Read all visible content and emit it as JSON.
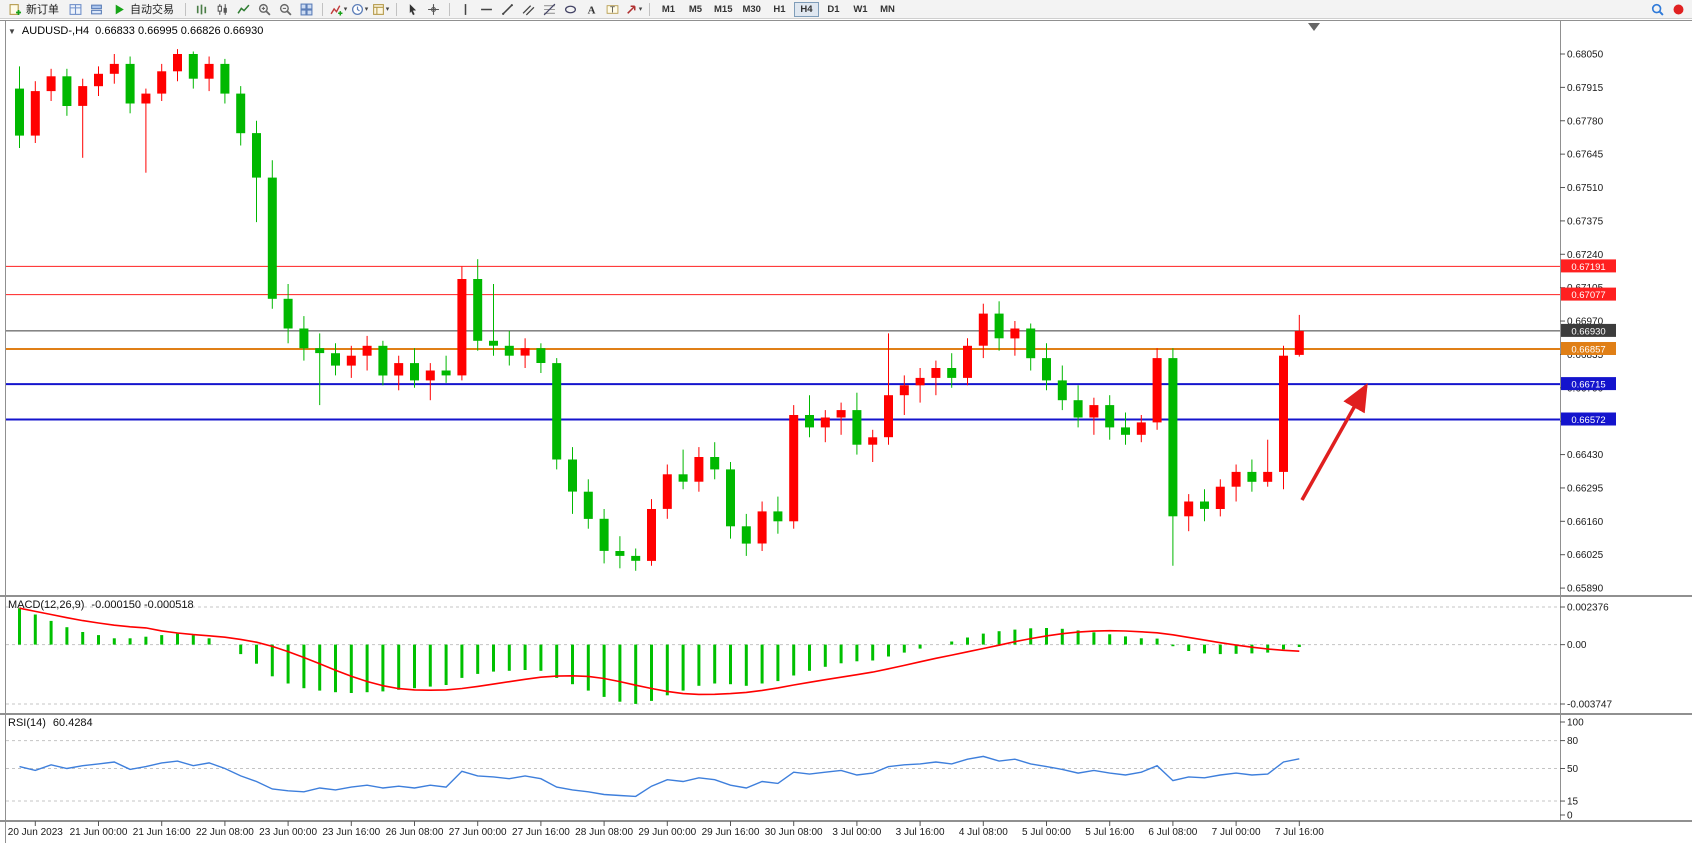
{
  "toolbar": {
    "active_timeframe": "H4",
    "items": [
      {
        "t": "btn",
        "name": "new-order-button",
        "icon": "new-order",
        "label": "新订单"
      },
      {
        "t": "icon",
        "name": "chart-window-icon",
        "icon": "grid"
      },
      {
        "t": "icon",
        "name": "data-window-icon",
        "icon": "layers"
      },
      {
        "t": "btn",
        "name": "autotrading-button",
        "icon": "play",
        "label": "自动交易"
      },
      {
        "t": "sep"
      },
      {
        "t": "icon",
        "name": "bar-chart-icon",
        "icon": "bars"
      },
      {
        "t": "icon",
        "name": "candlestick-chart-icon",
        "icon": "candles"
      },
      {
        "t": "icon",
        "name": "line-chart-icon",
        "icon": "linechart"
      },
      {
        "t": "icon",
        "name": "zoom-in-icon",
        "icon": "zoom-in"
      },
      {
        "t": "icon",
        "name": "zoom-out-icon",
        "icon": "zoom-out"
      },
      {
        "t": "icon",
        "name": "tile-windows-icon",
        "icon": "tiles"
      },
      {
        "t": "sep"
      },
      {
        "t": "icon",
        "name": "indicators-icon",
        "icon": "indicator",
        "caret": true
      },
      {
        "t": "icon",
        "name": "periods-icon",
        "icon": "clock",
        "caret": true
      },
      {
        "t": "icon",
        "name": "templates-icon",
        "icon": "template",
        "caret": true
      },
      {
        "t": "sep"
      },
      {
        "t": "icon",
        "name": "cursor-icon",
        "icon": "cursor"
      },
      {
        "t": "icon",
        "name": "crosshair-icon",
        "icon": "crosshair"
      },
      {
        "t": "sep"
      },
      {
        "t": "icon",
        "name": "vertical-line-icon",
        "icon": "vline"
      },
      {
        "t": "icon",
        "name": "horizontal-line-icon",
        "icon": "hline"
      },
      {
        "t": "icon",
        "name": "trendline-icon",
        "icon": "trend"
      },
      {
        "t": "icon",
        "name": "equidistant-channel-icon",
        "icon": "channel"
      },
      {
        "t": "icon",
        "name": "fibonacci-icon",
        "icon": "fibo"
      },
      {
        "t": "icon",
        "name": "shapes-icon",
        "icon": "ellipse"
      },
      {
        "t": "icon",
        "name": "text-icon",
        "icon": "textA"
      },
      {
        "t": "icon",
        "name": "text-label-icon",
        "icon": "labelT"
      },
      {
        "t": "icon",
        "name": "arrows-icon",
        "icon": "arrow",
        "caret": true
      },
      {
        "t": "sep"
      },
      {
        "t": "tf",
        "name": "timeframe-m1",
        "label": "M1"
      },
      {
        "t": "tf",
        "name": "timeframe-m5",
        "label": "M5"
      },
      {
        "t": "tf",
        "name": "timeframe-m15",
        "label": "M15"
      },
      {
        "t": "tf",
        "name": "timeframe-m30",
        "label": "M30"
      },
      {
        "t": "tf",
        "name": "timeframe-h1",
        "label": "H1"
      },
      {
        "t": "tf",
        "name": "timeframe-h4",
        "label": "H4"
      },
      {
        "t": "tf",
        "name": "timeframe-d1",
        "label": "D1"
      },
      {
        "t": "tf",
        "name": "timeframe-w1",
        "label": "W1"
      },
      {
        "t": "tf",
        "name": "timeframe-mn",
        "label": "MN"
      },
      {
        "t": "flex"
      },
      {
        "t": "icon",
        "name": "search-icon",
        "icon": "search"
      },
      {
        "t": "icon",
        "name": "record-icon",
        "icon": "record"
      }
    ]
  },
  "chart_title": {
    "collapse_glyph": "▼"
  },
  "chart_data": [
    {
      "type": "candlestick",
      "title": "AUDUSD-,H4",
      "ohlc_display": "0.66833 0.66995 0.66826 0.66930",
      "up_color": "#ff0000",
      "down_color": "#00b800",
      "y_ticks": [
        "0.68050",
        "0.67915",
        "0.67780",
        "0.67645",
        "0.67510",
        "0.67375",
        "0.67240",
        "0.67105",
        "0.66970",
        "0.66835",
        "0.66700",
        "0.66565",
        "0.66430",
        "0.66295",
        "0.66160",
        "0.66025",
        "0.65890"
      ],
      "x_labels": [
        "20 Jun 2023",
        "21 Jun 00:00",
        "21 Jun 16:00",
        "22 Jun 08:00",
        "23 Jun 00:00",
        "23 Jun 16:00",
        "26 Jun 08:00",
        "27 Jun 00:00",
        "27 Jun 16:00",
        "28 Jun 08:00",
        "29 Jun 00:00",
        "29 Jun 16:00",
        "30 Jun 08:00",
        "3 Jul 00:00",
        "3 Jul 16:00",
        "4 Jul 08:00",
        "5 Jul 00:00",
        "5 Jul 16:00",
        "6 Jul 08:00",
        "7 Jul 00:00",
        "7 Jul 16:00"
      ],
      "hlines": [
        {
          "price": 0.67191,
          "label": "0.67191",
          "color": "#ff2020",
          "width": 1
        },
        {
          "price": 0.67077,
          "label": "0.67077",
          "color": "#ff2020",
          "width": 1
        },
        {
          "price": 0.6693,
          "label": "0.66930",
          "color": "#3c3c3c",
          "width": 1
        },
        {
          "price": 0.66857,
          "label": "0.66857",
          "color": "#e07f16",
          "width": 2
        },
        {
          "price": 0.66715,
          "label": "0.66715",
          "color": "#1414cd",
          "width": 2
        },
        {
          "price": 0.66572,
          "label": "0.66572",
          "color": "#1414cd",
          "width": 2
        }
      ],
      "candles": [
        [
          0.6791,
          0.68,
          0.6767,
          0.6772
        ],
        [
          0.6772,
          0.6794,
          0.6769,
          0.679
        ],
        [
          0.679,
          0.6799,
          0.6786,
          0.6796
        ],
        [
          0.6796,
          0.6799,
          0.678,
          0.6784
        ],
        [
          0.6784,
          0.6795,
          0.6763,
          0.6792
        ],
        [
          0.6792,
          0.68,
          0.6788,
          0.6797
        ],
        [
          0.6797,
          0.6805,
          0.6793,
          0.6801
        ],
        [
          0.6801,
          0.6804,
          0.6781,
          0.6785
        ],
        [
          0.6785,
          0.6791,
          0.6757,
          0.6789
        ],
        [
          0.6789,
          0.6801,
          0.6786,
          0.6798
        ],
        [
          0.6798,
          0.6807,
          0.6794,
          0.6805
        ],
        [
          0.6805,
          0.6806,
          0.6791,
          0.6795
        ],
        [
          0.6795,
          0.6804,
          0.679,
          0.6801
        ],
        [
          0.6801,
          0.6803,
          0.6785,
          0.6789
        ],
        [
          0.6789,
          0.6792,
          0.6768,
          0.6773
        ],
        [
          0.6773,
          0.6778,
          0.6737,
          0.6755
        ],
        [
          0.6755,
          0.6762,
          0.6702,
          0.6706
        ],
        [
          0.6706,
          0.6712,
          0.6688,
          0.6694
        ],
        [
          0.6694,
          0.6699,
          0.6681,
          0.6686
        ],
        [
          0.6686,
          0.6692,
          0.6663,
          0.6684
        ],
        [
          0.6684,
          0.6688,
          0.6675,
          0.6679
        ],
        [
          0.6679,
          0.6687,
          0.6674,
          0.6683
        ],
        [
          0.6683,
          0.6691,
          0.6677,
          0.6687
        ],
        [
          0.6687,
          0.6689,
          0.6671,
          0.6675
        ],
        [
          0.6675,
          0.6683,
          0.6669,
          0.668
        ],
        [
          0.668,
          0.6686,
          0.667,
          0.6673
        ],
        [
          0.6673,
          0.668,
          0.6665,
          0.6677
        ],
        [
          0.6677,
          0.6683,
          0.6672,
          0.6675
        ],
        [
          0.6675,
          0.6719,
          0.6673,
          0.6714
        ],
        [
          0.6714,
          0.6722,
          0.6685,
          0.6689
        ],
        [
          0.6689,
          0.6712,
          0.6683,
          0.6687
        ],
        [
          0.6687,
          0.6693,
          0.6679,
          0.6683
        ],
        [
          0.6683,
          0.669,
          0.6678,
          0.6686
        ],
        [
          0.6686,
          0.6688,
          0.6676,
          0.668
        ],
        [
          0.668,
          0.6682,
          0.6637,
          0.6641
        ],
        [
          0.6641,
          0.6646,
          0.6619,
          0.6628
        ],
        [
          0.6628,
          0.6633,
          0.6613,
          0.6617
        ],
        [
          0.6617,
          0.6621,
          0.6599,
          0.6604
        ],
        [
          0.6604,
          0.661,
          0.6597,
          0.6602
        ],
        [
          0.6602,
          0.6605,
          0.6596,
          0.66
        ],
        [
          0.66,
          0.6625,
          0.6598,
          0.6621
        ],
        [
          0.6621,
          0.6639,
          0.6617,
          0.6635
        ],
        [
          0.6635,
          0.6645,
          0.6629,
          0.6632
        ],
        [
          0.6632,
          0.6646,
          0.6628,
          0.6642
        ],
        [
          0.6642,
          0.6648,
          0.6633,
          0.6637
        ],
        [
          0.6637,
          0.664,
          0.6609,
          0.6614
        ],
        [
          0.6614,
          0.6619,
          0.6602,
          0.6607
        ],
        [
          0.6607,
          0.6624,
          0.6604,
          0.662
        ],
        [
          0.662,
          0.6626,
          0.6611,
          0.6616
        ],
        [
          0.6616,
          0.6663,
          0.6613,
          0.6659
        ],
        [
          0.6659,
          0.6667,
          0.665,
          0.6654
        ],
        [
          0.6654,
          0.6661,
          0.6648,
          0.6658
        ],
        [
          0.6658,
          0.6664,
          0.6651,
          0.6661
        ],
        [
          0.6661,
          0.6668,
          0.6643,
          0.6647
        ],
        [
          0.6647,
          0.6653,
          0.664,
          0.665
        ],
        [
          0.665,
          0.6692,
          0.6647,
          0.6667
        ],
        [
          0.6667,
          0.6675,
          0.6659,
          0.6671
        ],
        [
          0.6671,
          0.6678,
          0.6664,
          0.6674
        ],
        [
          0.6674,
          0.6681,
          0.6667,
          0.6678
        ],
        [
          0.6678,
          0.6684,
          0.667,
          0.6674
        ],
        [
          0.6674,
          0.669,
          0.6671,
          0.6687
        ],
        [
          0.6687,
          0.6704,
          0.6682,
          0.67
        ],
        [
          0.67,
          0.6705,
          0.6685,
          0.669
        ],
        [
          0.669,
          0.6697,
          0.6683,
          0.6694
        ],
        [
          0.6694,
          0.6696,
          0.6677,
          0.6682
        ],
        [
          0.6682,
          0.6688,
          0.6669,
          0.6673
        ],
        [
          0.6673,
          0.6679,
          0.6661,
          0.6665
        ],
        [
          0.6665,
          0.6671,
          0.6654,
          0.6658
        ],
        [
          0.6658,
          0.6666,
          0.6651,
          0.6663
        ],
        [
          0.6663,
          0.6667,
          0.6649,
          0.6654
        ],
        [
          0.6654,
          0.666,
          0.6647,
          0.6651
        ],
        [
          0.6651,
          0.6659,
          0.6648,
          0.6656
        ],
        [
          0.6656,
          0.6686,
          0.6653,
          0.6682
        ],
        [
          0.6682,
          0.6686,
          0.6598,
          0.6618
        ],
        [
          0.6618,
          0.6627,
          0.6612,
          0.6624
        ],
        [
          0.6624,
          0.6629,
          0.6616,
          0.6621
        ],
        [
          0.6621,
          0.6633,
          0.6618,
          0.663
        ],
        [
          0.663,
          0.6639,
          0.6624,
          0.6636
        ],
        [
          0.6636,
          0.6641,
          0.6628,
          0.6632
        ],
        [
          0.6632,
          0.6649,
          0.663,
          0.6636
        ],
        [
          0.6636,
          0.6687,
          0.6629,
          0.6683
        ],
        [
          0.66833,
          0.66995,
          0.66826,
          0.6693
        ]
      ]
    },
    {
      "type": "macd_histogram",
      "label": "MACD(12,26,9)",
      "values_text": "-0.000150 -0.000518",
      "ymax": 0.002376,
      "ymin": -0.003747,
      "y_ticks": [
        "0.002376",
        "0.00",
        "-0.003747"
      ],
      "histogram_color": "#00c000",
      "signal_color": "#ff0000",
      "signal_period": 9,
      "histogram": [
        0.0023,
        0.0019,
        0.0015,
        0.0011,
        0.0008,
        0.0006,
        0.0004,
        0.0004,
        0.0005,
        0.0006,
        0.0007,
        0.0006,
        0.0004,
        0.0,
        -0.0006,
        -0.0012,
        -0.002,
        -0.00245,
        -0.00275,
        -0.0029,
        -0.003,
        -0.00305,
        -0.003,
        -0.00295,
        -0.00285,
        -0.00275,
        -0.00265,
        -0.00255,
        -0.0021,
        -0.00185,
        -0.0017,
        -0.00165,
        -0.0016,
        -0.00165,
        -0.0021,
        -0.0025,
        -0.0029,
        -0.0033,
        -0.0036,
        -0.00374,
        -0.00355,
        -0.0032,
        -0.0029,
        -0.0026,
        -0.00245,
        -0.0025,
        -0.0026,
        -0.00245,
        -0.0023,
        -0.00195,
        -0.00165,
        -0.0014,
        -0.00118,
        -0.00105,
        -0.001,
        -0.00075,
        -0.0005,
        -0.00025,
        0.0,
        0.0002,
        0.00045,
        0.0007,
        0.00085,
        0.00095,
        0.00103,
        0.00105,
        0.001,
        0.0009,
        0.00078,
        0.00065,
        0.00052,
        0.0004,
        0.00038,
        -0.0001,
        -0.0004,
        -0.00055,
        -0.0006,
        -0.00058,
        -0.00055,
        -0.0005,
        -0.0003,
        -0.00015
      ]
    },
    {
      "type": "rsi",
      "label": "RSI(14)",
      "value_text": "60.4284",
      "range": [
        0,
        100
      ],
      "levels": [
        "100",
        "80",
        "50",
        "15",
        "0"
      ],
      "dashed_levels": [
        80,
        50,
        15
      ],
      "line_color": "#3e7fdc",
      "values": [
        52,
        48,
        54,
        50,
        53,
        55,
        57,
        49,
        52,
        56,
        58,
        53,
        56,
        50,
        42,
        36,
        28,
        26,
        25,
        29,
        27,
        30,
        32,
        29,
        31,
        29,
        32,
        30,
        47,
        42,
        41,
        39,
        42,
        39,
        30,
        27,
        25,
        22,
        21,
        20,
        31,
        38,
        36,
        40,
        38,
        32,
        29,
        36,
        34,
        46,
        44,
        46,
        48,
        43,
        45,
        52,
        54,
        55,
        57,
        55,
        60,
        63,
        58,
        60,
        55,
        52,
        49,
        45,
        48,
        45,
        43,
        46,
        53,
        37,
        41,
        40,
        43,
        45,
        43,
        44,
        57,
        60.4284
      ]
    }
  ]
}
